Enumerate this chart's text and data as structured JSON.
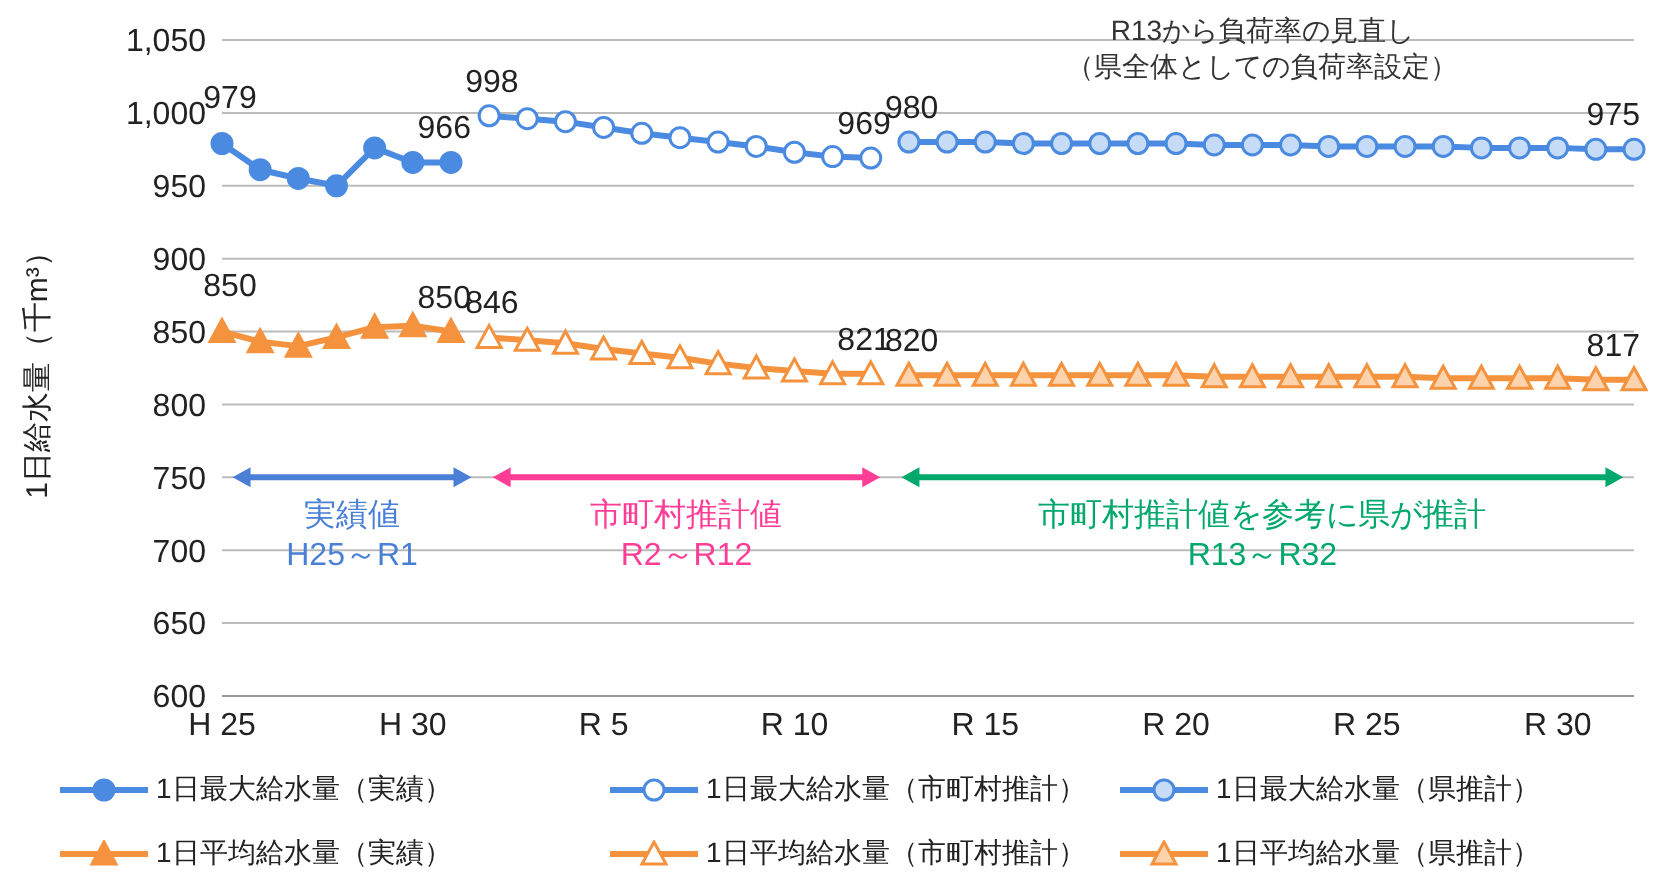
{
  "chart_data": {
    "type": "line",
    "ylabel": "1日給水量（千m³）",
    "categories": [
      "H 25",
      null,
      null,
      null,
      null,
      "H 30",
      null,
      null,
      null,
      null,
      "R 5",
      null,
      null,
      null,
      null,
      "R 10",
      null,
      null,
      null,
      null,
      "R 15",
      null,
      null,
      null,
      null,
      "R 20",
      null,
      null,
      null,
      null,
      "R 25",
      null,
      null,
      null,
      null,
      "R 30",
      null,
      null
    ],
    "series": [
      {
        "name": "1日最大給水量（実績）",
        "color": "#4a8ae0",
        "marker": "circle",
        "values": [
          979,
          961,
          955,
          950,
          976,
          966,
          966,
          null,
          null,
          null,
          null,
          null,
          null,
          null,
          null,
          null,
          null,
          null,
          null,
          null,
          null,
          null,
          null,
          null,
          null,
          null,
          null,
          null,
          null,
          null,
          null,
          null,
          null,
          null,
          null,
          null,
          null,
          null
        ],
        "value_labels": [
          "979",
          null,
          null,
          null,
          null,
          null,
          "966",
          null,
          null,
          null,
          null,
          null,
          null,
          null,
          null,
          null,
          null,
          null,
          null,
          null,
          null,
          null,
          null,
          null,
          null,
          null,
          null,
          null,
          null,
          null,
          null,
          null,
          null,
          null,
          null,
          null,
          null,
          null
        ]
      },
      {
        "name": "1日最大給水量（市町村推計）",
        "color": "#4a8ae0",
        "marker": "circle",
        "values": [
          null,
          null,
          null,
          null,
          null,
          null,
          null,
          998,
          996,
          994,
          990,
          986,
          983,
          980,
          977,
          973,
          970,
          969,
          null,
          null,
          null,
          null,
          null,
          null,
          null,
          null,
          null,
          null,
          null,
          null,
          null,
          null,
          null,
          null,
          null,
          null,
          null,
          null
        ],
        "value_labels": [
          null,
          null,
          null,
          null,
          null,
          null,
          null,
          "998",
          null,
          null,
          null,
          null,
          null,
          null,
          null,
          null,
          null,
          "969",
          null,
          null,
          null,
          null,
          null,
          null,
          null,
          null,
          null,
          null,
          null,
          null,
          null,
          null,
          null,
          null,
          null,
          null,
          null,
          null
        ]
      },
      {
        "name": "1日最大給水量（県推計）",
        "color": "#4a8ae0",
        "marker": "circle",
        "values": [
          null,
          null,
          null,
          null,
          null,
          null,
          null,
          null,
          null,
          null,
          null,
          null,
          null,
          null,
          null,
          null,
          null,
          null,
          980,
          980,
          980,
          979,
          979,
          979,
          979,
          979,
          978,
          978,
          978,
          977,
          977,
          977,
          977,
          976,
          976,
          976,
          975,
          975
        ],
        "value_labels": [
          null,
          null,
          null,
          null,
          null,
          null,
          null,
          null,
          null,
          null,
          null,
          null,
          null,
          null,
          null,
          null,
          null,
          null,
          "980",
          null,
          null,
          null,
          null,
          null,
          null,
          null,
          null,
          null,
          null,
          null,
          null,
          null,
          null,
          null,
          null,
          null,
          null,
          "975"
        ]
      },
      {
        "name": "1日平均給水量（実績）",
        "color": "#f5923e",
        "marker": "triangle",
        "values": [
          850,
          843,
          840,
          846,
          853,
          854,
          850,
          null,
          null,
          null,
          null,
          null,
          null,
          null,
          null,
          null,
          null,
          null,
          null,
          null,
          null,
          null,
          null,
          null,
          null,
          null,
          null,
          null,
          null,
          null,
          null,
          null,
          null,
          null,
          null,
          null,
          null,
          null
        ],
        "value_labels": [
          "850",
          null,
          null,
          null,
          null,
          null,
          "850",
          null,
          null,
          null,
          null,
          null,
          null,
          null,
          null,
          null,
          null,
          null,
          null,
          null,
          null,
          null,
          null,
          null,
          null,
          null,
          null,
          null,
          null,
          null,
          null,
          null,
          null,
          null,
          null,
          null,
          null,
          null
        ]
      },
      {
        "name": "1日平均給水量（市町村推計）",
        "color": "#f5923e",
        "marker": "triangle",
        "values": [
          null,
          null,
          null,
          null,
          null,
          null,
          null,
          846,
          844,
          842,
          838,
          835,
          832,
          828,
          825,
          823,
          821,
          821,
          null,
          null,
          null,
          null,
          null,
          null,
          null,
          null,
          null,
          null,
          null,
          null,
          null,
          null,
          null,
          null,
          null,
          null,
          null,
          null
        ],
        "value_labels": [
          null,
          null,
          null,
          null,
          null,
          null,
          null,
          "846",
          null,
          null,
          null,
          null,
          null,
          null,
          null,
          null,
          null,
          "821",
          null,
          null,
          null,
          null,
          null,
          null,
          null,
          null,
          null,
          null,
          null,
          null,
          null,
          null,
          null,
          null,
          null,
          null,
          null,
          null
        ]
      },
      {
        "name": "1日平均給水量（県推計）",
        "color": "#f5923e",
        "marker": "triangle",
        "values": [
          null,
          null,
          null,
          null,
          null,
          null,
          null,
          null,
          null,
          null,
          null,
          null,
          null,
          null,
          null,
          null,
          null,
          null,
          820,
          820,
          820,
          820,
          820,
          820,
          820,
          820,
          819,
          819,
          819,
          819,
          819,
          819,
          818,
          818,
          818,
          818,
          817,
          817
        ],
        "value_labels": [
          null,
          null,
          null,
          null,
          null,
          null,
          null,
          null,
          null,
          null,
          null,
          null,
          null,
          null,
          null,
          null,
          null,
          null,
          "820",
          null,
          null,
          null,
          null,
          null,
          null,
          null,
          null,
          null,
          null,
          null,
          null,
          null,
          null,
          null,
          null,
          null,
          null,
          "817"
        ]
      }
    ],
    "ylim": [
      600,
      1050
    ],
    "yticks": [
      600,
      650,
      700,
      750,
      800,
      850,
      900,
      950,
      {
        "value": 1000,
        "label": "1,000"
      },
      {
        "value": 1050,
        "label": "1,050"
      }
    ],
    "grid": "y",
    "legend": "bottom",
    "annotations": [
      "R13から負荷率の見直し",
      "（県全体としての負荷率設定）",
      "実績値",
      "H25～R1",
      "市町村推計値",
      "R2～R12",
      "市町村推計値を参考に県が推計",
      "R13～R32"
    ]
  }
}
